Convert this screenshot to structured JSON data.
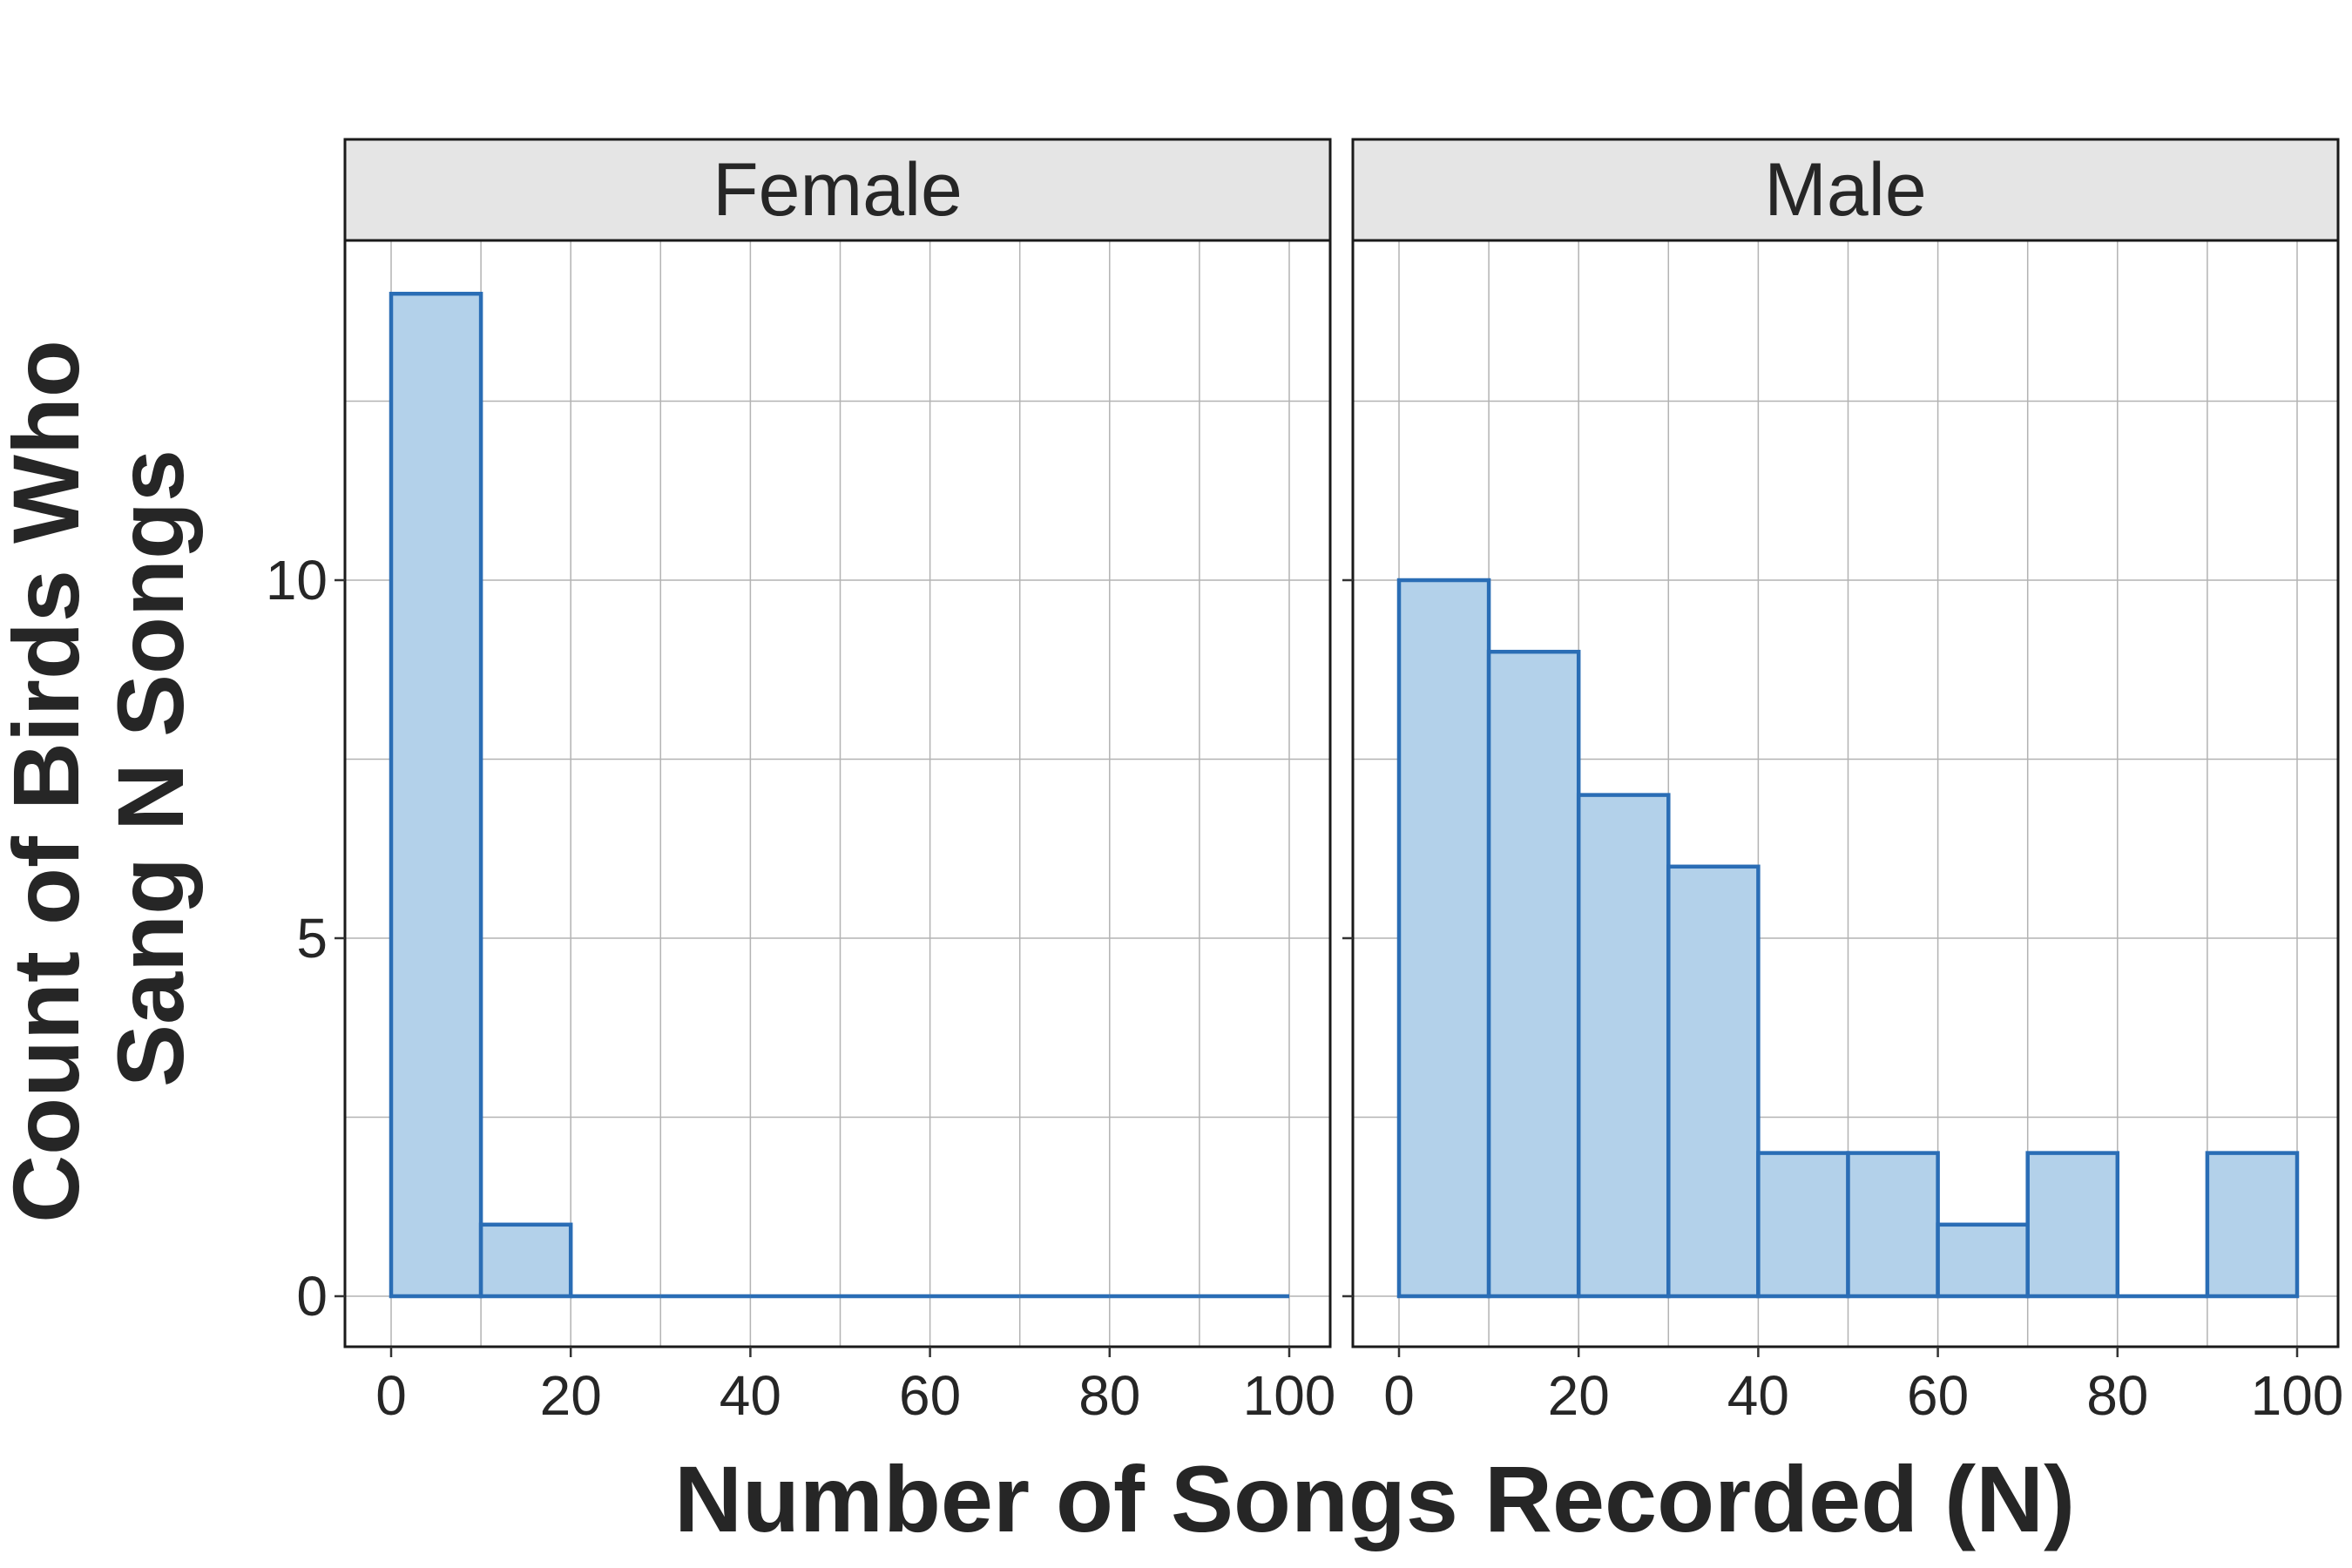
{
  "chart_data": {
    "type": "bar",
    "subtype": "faceted-histogram",
    "xlabel": "Number of Songs Recorded (N)",
    "ylabel_lines": [
      "Count of Birds Who",
      "Sang N Songs"
    ],
    "xlim": [
      0,
      100
    ],
    "ylim": [
      0,
      14
    ],
    "x_ticks": [
      0,
      20,
      40,
      60,
      80,
      100
    ],
    "y_ticks": [
      0,
      5,
      10
    ],
    "bin_width": 10,
    "bin_starts": [
      0,
      10,
      20,
      30,
      40,
      50,
      60,
      70,
      80,
      90
    ],
    "grid": true,
    "fill_color": "#b3d1ea",
    "outline_color": "#2a6db5",
    "strip_color": "#e5e5e5",
    "facets": [
      {
        "name": "Female",
        "values": [
          14,
          1,
          0,
          0,
          0,
          0,
          0,
          0,
          0,
          0
        ]
      },
      {
        "name": "Male",
        "values": [
          10,
          9,
          7,
          6,
          2,
          2,
          1,
          2,
          0,
          2
        ]
      }
    ]
  }
}
